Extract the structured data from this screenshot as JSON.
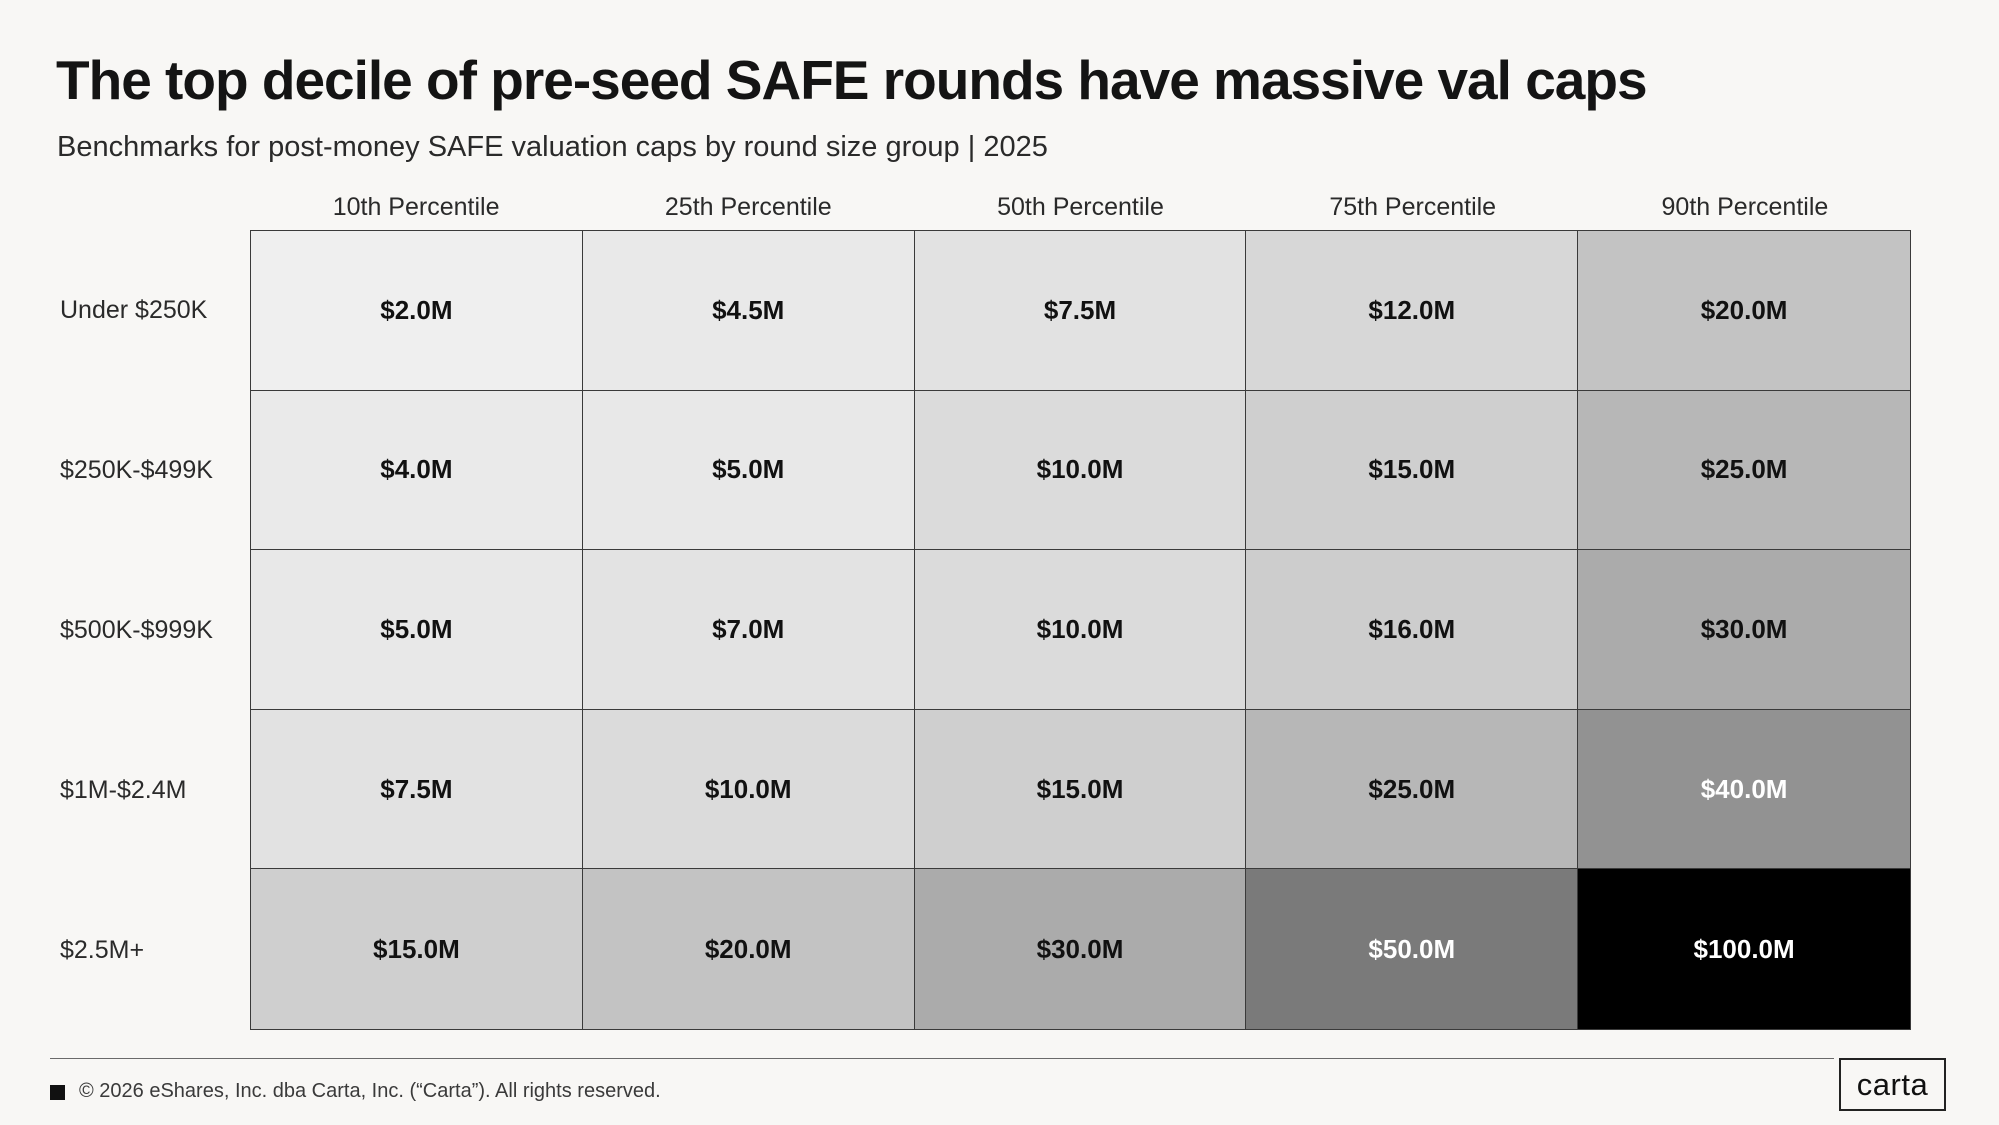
{
  "header": {
    "title": "The top decile of pre-seed SAFE rounds have massive val caps",
    "subtitle": "Benchmarks for post-money SAFE valuation caps by round size group | 2025"
  },
  "chart_data": {
    "type": "heatmap",
    "title": "The top decile of pre-seed SAFE rounds have massive val caps",
    "subtitle": "Benchmarks for post-money SAFE valuation caps by round size group | 2025",
    "columns": [
      "10th Percentile",
      "25th Percentile",
      "50th Percentile",
      "75th Percentile",
      "90th Percentile"
    ],
    "rows": [
      "Under $250K",
      "$250K-$499K",
      "$500K-$999K",
      "$1M-$2.4M",
      "$2.5M+"
    ],
    "values": [
      [
        2.0,
        4.5,
        7.5,
        12.0,
        20.0
      ],
      [
        4.0,
        5.0,
        10.0,
        15.0,
        25.0
      ],
      [
        5.0,
        7.0,
        10.0,
        16.0,
        30.0
      ],
      [
        7.5,
        10.0,
        15.0,
        25.0,
        40.0
      ],
      [
        15.0,
        20.0,
        30.0,
        50.0,
        100.0
      ]
    ],
    "labels": [
      [
        "$2.0M",
        "$4.5M",
        "$7.5M",
        "$12.0M",
        "$20.0M"
      ],
      [
        "$4.0M",
        "$5.0M",
        "$10.0M",
        "$15.0M",
        "$25.0M"
      ],
      [
        "$5.0M",
        "$7.0M",
        "$10.0M",
        "$16.0M",
        "$30.0M"
      ],
      [
        "$7.5M",
        "$10.0M",
        "$15.0M",
        "$25.0M",
        "$40.0M"
      ],
      [
        "$15.0M",
        "$20.0M",
        "$30.0M",
        "$50.0M",
        "$100.0M"
      ]
    ],
    "colors": {
      "scale_low": "#efefef",
      "scale_high": "#000000",
      "text_dark": "#111111",
      "text_light": "#ffffff"
    }
  },
  "footer": {
    "copyright": "© 2026 eShares, Inc. dba Carta, Inc. (“Carta”). All rights reserved.",
    "logo_text": "carta"
  }
}
